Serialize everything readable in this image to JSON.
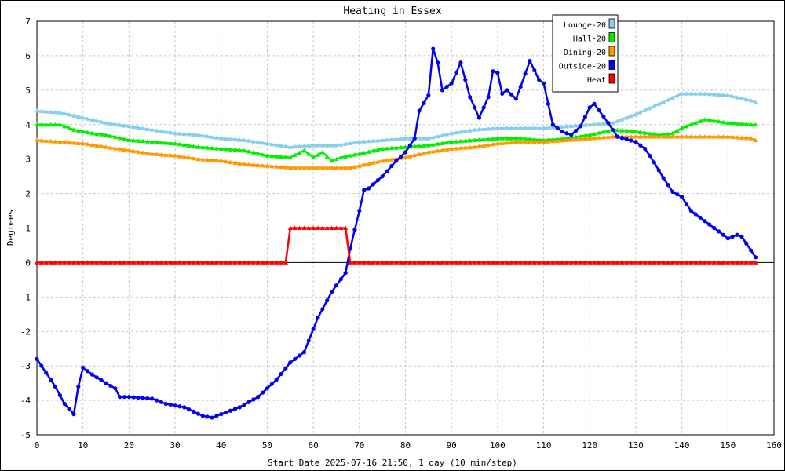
{
  "chart_data": {
    "type": "line",
    "title": "Heating in Essex",
    "xlabel": "Start Date 2025-07-16 21:50, 1 day (10 min/step)",
    "ylabel": "Degrees",
    "xlim": [
      0,
      160
    ],
    "ylim": [
      -5,
      7
    ],
    "x_ticks": [
      0,
      10,
      20,
      30,
      40,
      50,
      60,
      70,
      80,
      90,
      100,
      110,
      120,
      130,
      140,
      150,
      160
    ],
    "y_ticks": [
      -5,
      -4,
      -3,
      -2,
      -1,
      0,
      1,
      2,
      3,
      4,
      5,
      6,
      7
    ],
    "grid": true,
    "legend_position": "top-right",
    "series": [
      {
        "name": "Lounge-20",
        "color": "#87ceeb",
        "points": [
          [
            0,
            4.4
          ],
          [
            5,
            4.35
          ],
          [
            10,
            4.2
          ],
          [
            15,
            4.05
          ],
          [
            20,
            3.95
          ],
          [
            25,
            3.85
          ],
          [
            30,
            3.75
          ],
          [
            35,
            3.7
          ],
          [
            40,
            3.6
          ],
          [
            45,
            3.55
          ],
          [
            50,
            3.45
          ],
          [
            55,
            3.35
          ],
          [
            60,
            3.4
          ],
          [
            65,
            3.4
          ],
          [
            70,
            3.5
          ],
          [
            75,
            3.55
          ],
          [
            80,
            3.6
          ],
          [
            85,
            3.6
          ],
          [
            90,
            3.75
          ],
          [
            95,
            3.85
          ],
          [
            100,
            3.9
          ],
          [
            105,
            3.9
          ],
          [
            110,
            3.9
          ],
          [
            115,
            3.95
          ],
          [
            120,
            4.0
          ],
          [
            125,
            4.05
          ],
          [
            130,
            4.3
          ],
          [
            135,
            4.6
          ],
          [
            140,
            4.9
          ],
          [
            145,
            4.9
          ],
          [
            150,
            4.85
          ],
          [
            155,
            4.7
          ],
          [
            156,
            4.65
          ]
        ]
      },
      {
        "name": "Hall-20",
        "color": "#00ee00",
        "points": [
          [
            0,
            4.0
          ],
          [
            5,
            4.0
          ],
          [
            8,
            3.85
          ],
          [
            12,
            3.75
          ],
          [
            15,
            3.7
          ],
          [
            20,
            3.55
          ],
          [
            25,
            3.5
          ],
          [
            30,
            3.45
          ],
          [
            35,
            3.35
          ],
          [
            40,
            3.3
          ],
          [
            45,
            3.25
          ],
          [
            50,
            3.1
          ],
          [
            55,
            3.05
          ],
          [
            58,
            3.25
          ],
          [
            60,
            3.05
          ],
          [
            62,
            3.2
          ],
          [
            64,
            2.95
          ],
          [
            66,
            3.05
          ],
          [
            70,
            3.15
          ],
          [
            75,
            3.3
          ],
          [
            80,
            3.35
          ],
          [
            85,
            3.4
          ],
          [
            90,
            3.5
          ],
          [
            95,
            3.55
          ],
          [
            100,
            3.6
          ],
          [
            105,
            3.6
          ],
          [
            110,
            3.55
          ],
          [
            115,
            3.6
          ],
          [
            120,
            3.7
          ],
          [
            125,
            3.85
          ],
          [
            130,
            3.8
          ],
          [
            135,
            3.7
          ],
          [
            138,
            3.75
          ],
          [
            140,
            3.9
          ],
          [
            145,
            4.15
          ],
          [
            150,
            4.05
          ],
          [
            155,
            4.0
          ],
          [
            156,
            4.0
          ]
        ]
      },
      {
        "name": "Dining-20",
        "color": "#ff9900",
        "points": [
          [
            0,
            3.55
          ],
          [
            5,
            3.5
          ],
          [
            10,
            3.45
          ],
          [
            15,
            3.35
          ],
          [
            20,
            3.25
          ],
          [
            25,
            3.15
          ],
          [
            30,
            3.1
          ],
          [
            35,
            3.0
          ],
          [
            40,
            2.95
          ],
          [
            45,
            2.85
          ],
          [
            50,
            2.8
          ],
          [
            55,
            2.75
          ],
          [
            60,
            2.75
          ],
          [
            65,
            2.75
          ],
          [
            68,
            2.75
          ],
          [
            70,
            2.8
          ],
          [
            75,
            2.95
          ],
          [
            80,
            3.05
          ],
          [
            85,
            3.2
          ],
          [
            90,
            3.3
          ],
          [
            95,
            3.35
          ],
          [
            100,
            3.45
          ],
          [
            105,
            3.5
          ],
          [
            110,
            3.5
          ],
          [
            115,
            3.55
          ],
          [
            120,
            3.6
          ],
          [
            125,
            3.65
          ],
          [
            130,
            3.65
          ],
          [
            135,
            3.65
          ],
          [
            140,
            3.65
          ],
          [
            145,
            3.65
          ],
          [
            150,
            3.65
          ],
          [
            155,
            3.6
          ],
          [
            156,
            3.55
          ]
        ]
      },
      {
        "name": "Outside-20",
        "color": "#0000ee",
        "points": [
          [
            0,
            -2.8
          ],
          [
            2,
            -3.2
          ],
          [
            4,
            -3.6
          ],
          [
            6,
            -4.1
          ],
          [
            8,
            -4.4
          ],
          [
            9,
            -3.6
          ],
          [
            10,
            -3.05
          ],
          [
            12,
            -3.25
          ],
          [
            15,
            -3.5
          ],
          [
            17,
            -3.65
          ],
          [
            18,
            -3.9
          ],
          [
            20,
            -3.9
          ],
          [
            25,
            -3.95
          ],
          [
            28,
            -4.1
          ],
          [
            32,
            -4.2
          ],
          [
            36,
            -4.45
          ],
          [
            38,
            -4.5
          ],
          [
            40,
            -4.4
          ],
          [
            44,
            -4.2
          ],
          [
            48,
            -3.9
          ],
          [
            52,
            -3.4
          ],
          [
            55,
            -2.9
          ],
          [
            58,
            -2.6
          ],
          [
            61,
            -1.6
          ],
          [
            64,
            -0.85
          ],
          [
            67,
            -0.3
          ],
          [
            68,
            0.4
          ],
          [
            70,
            1.5
          ],
          [
            71,
            2.1
          ],
          [
            72,
            2.15
          ],
          [
            75,
            2.5
          ],
          [
            78,
            2.95
          ],
          [
            80,
            3.2
          ],
          [
            82,
            3.6
          ],
          [
            83,
            4.4
          ],
          [
            85,
            4.85
          ],
          [
            86,
            6.2
          ],
          [
            87,
            5.8
          ],
          [
            88,
            5.0
          ],
          [
            90,
            5.2
          ],
          [
            92,
            5.8
          ],
          [
            94,
            4.8
          ],
          [
            96,
            4.2
          ],
          [
            98,
            4.8
          ],
          [
            99,
            5.55
          ],
          [
            100,
            5.5
          ],
          [
            101,
            4.9
          ],
          [
            102,
            5.0
          ],
          [
            104,
            4.75
          ],
          [
            105,
            5.1
          ],
          [
            107,
            5.85
          ],
          [
            109,
            5.3
          ],
          [
            110,
            5.2
          ],
          [
            112,
            4.0
          ],
          [
            114,
            3.8
          ],
          [
            116,
            3.7
          ],
          [
            118,
            3.95
          ],
          [
            120,
            4.5
          ],
          [
            121,
            4.6
          ],
          [
            124,
            4.05
          ],
          [
            126,
            3.65
          ],
          [
            130,
            3.5
          ],
          [
            132,
            3.3
          ],
          [
            134,
            2.9
          ],
          [
            136,
            2.45
          ],
          [
            138,
            2.05
          ],
          [
            140,
            1.9
          ],
          [
            142,
            1.5
          ],
          [
            145,
            1.2
          ],
          [
            148,
            0.9
          ],
          [
            150,
            0.7
          ],
          [
            152,
            0.8
          ],
          [
            153,
            0.75
          ],
          [
            155,
            0.35
          ],
          [
            156,
            0.15
          ]
        ]
      },
      {
        "name": "Heat",
        "color": "#ff0000",
        "points": [
          [
            0,
            0
          ],
          [
            54,
            0
          ],
          [
            55,
            1
          ],
          [
            67,
            1
          ],
          [
            68,
            0
          ],
          [
            156,
            0
          ]
        ]
      }
    ]
  }
}
